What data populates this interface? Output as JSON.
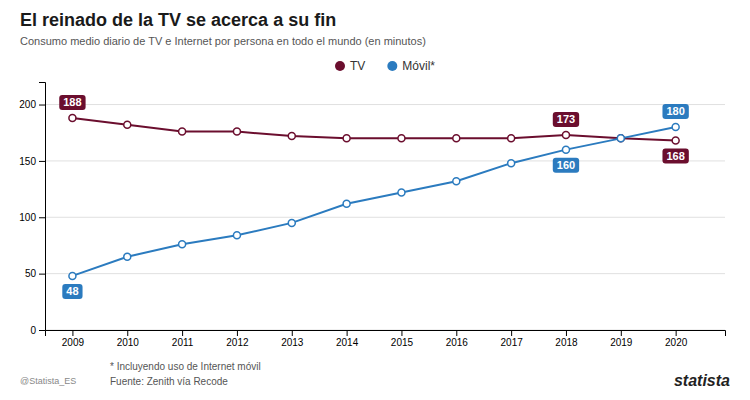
{
  "chart_data": {
    "type": "line",
    "title": "El reinado de la TV se acerca a su fin",
    "subtitle": "Consumo medio diario de TV e Internet por persona en todo el mundo (en minutos)",
    "x": [
      2009,
      2010,
      2011,
      2012,
      2013,
      2014,
      2015,
      2016,
      2017,
      2018,
      2019,
      2020
    ],
    "series": [
      {
        "name": "TV",
        "color": "#6b0e2e",
        "marker": "circle",
        "values": [
          188,
          182,
          176,
          176,
          172,
          170,
          170,
          170,
          170,
          173,
          170,
          168
        ]
      },
      {
        "name": "Móvil*",
        "color": "#2b7bbf",
        "marker": "circle",
        "values": [
          48,
          65,
          76,
          84,
          95,
          112,
          122,
          132,
          148,
          160,
          170,
          180
        ]
      }
    ],
    "xlim": [
      2008.5,
      2020.9
    ],
    "xticks": [
      2009,
      2010,
      2011,
      2012,
      2013,
      2014,
      2015,
      2016,
      2017,
      2018,
      2019,
      2020
    ],
    "ylim": [
      0,
      220
    ],
    "yticks": [
      0,
      50,
      100,
      150,
      200
    ],
    "grid": true,
    "legend": "top",
    "annotations": [
      {
        "text": "188",
        "x": 2009,
        "y": 188,
        "color": "#6b0e2e"
      },
      {
        "text": "173",
        "x": 2018,
        "y": 173,
        "color": "#6b0e2e"
      },
      {
        "text": "168",
        "x": 2020,
        "y": 168,
        "color": "#6b0e2e"
      },
      {
        "text": "48",
        "x": 2009,
        "y": 48,
        "color": "#2b7bbf"
      },
      {
        "text": "160",
        "x": 2018,
        "y": 160,
        "color": "#2b7bbf"
      },
      {
        "text": "180",
        "x": 2020,
        "y": 180,
        "color": "#2b7bbf"
      }
    ],
    "footnotes": [
      "* Incluyendo uso de Internet móvil",
      "Fuente: Zenith vía Recode"
    ],
    "credits": [
      "@Statista_ES",
      "statista"
    ]
  }
}
